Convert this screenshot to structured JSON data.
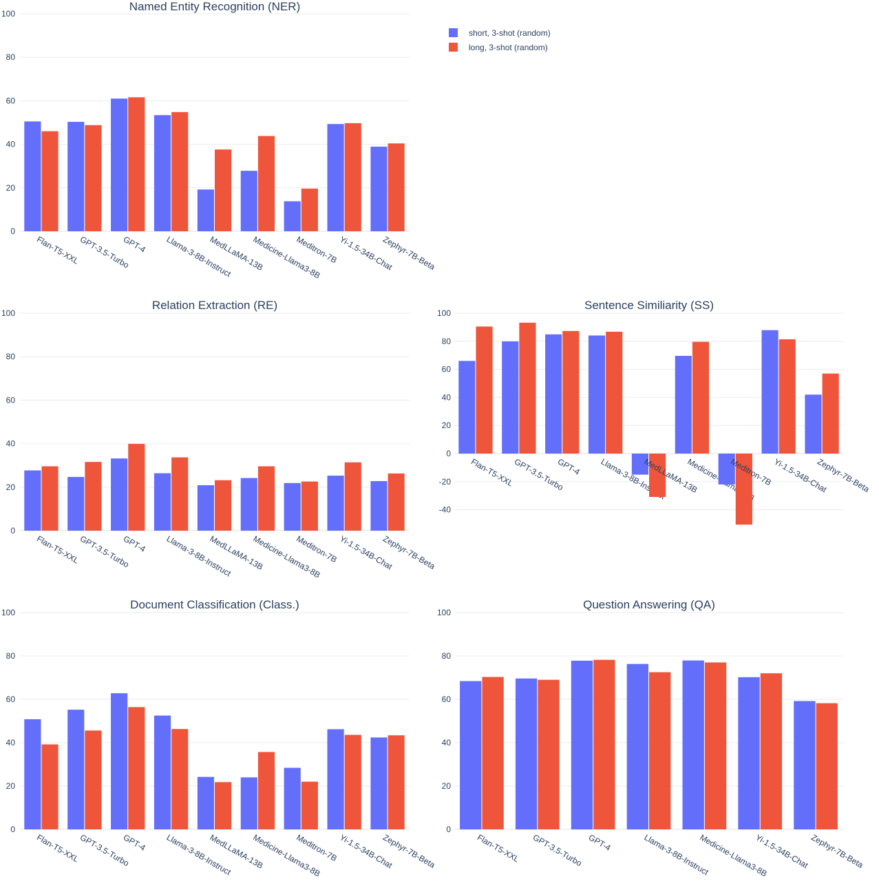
{
  "colors": {
    "short": "#636efa",
    "long": "#ef553b"
  },
  "legend": [
    {
      "name": "short, 3-shot (random)",
      "color": "#636efa"
    },
    {
      "name": "long, 3-shot (random)",
      "color": "#ef553b"
    }
  ],
  "chart_data": [
    {
      "type": "bar",
      "title": "Named Entity Recognition (NER)",
      "ylim": [
        0,
        100
      ],
      "yticks": [
        0,
        20,
        40,
        60,
        80,
        100
      ],
      "categories": [
        "Flan-T5-XXL",
        "GPT-3.5-Turbo",
        "GPT-4",
        "Llama-3-8B-Instruct",
        "MedLLaMA-13B",
        "Medicine-Llama3-8B",
        "Meditron-7B",
        "Yi-1.5-34B-Chat",
        "Zephyr-7B-Beta"
      ],
      "series": [
        {
          "name": "short, 3-shot (random)",
          "values": [
            50.5,
            50.3,
            61.0,
            53.4,
            19.2,
            27.8,
            13.8,
            49.3,
            38.9
          ]
        },
        {
          "name": "long, 3-shot (random)",
          "values": [
            46.0,
            48.8,
            61.6,
            54.8,
            37.6,
            43.8,
            19.6,
            49.7,
            40.4
          ]
        }
      ]
    },
    {
      "type": "bar",
      "title": "Relation Extraction (RE)",
      "ylim": [
        0,
        100
      ],
      "yticks": [
        0,
        20,
        40,
        60,
        80,
        100
      ],
      "categories": [
        "Flan-T5-XXL",
        "GPT-3.5-Turbo",
        "GPT-4",
        "Llama-3-8B-Instruct",
        "MedLLaMA-13B",
        "Medicine-Llama3-8B",
        "Meditron-7B",
        "Yi-1.5-34B-Chat",
        "Zephyr-7B-Beta"
      ],
      "series": [
        {
          "name": "short, 3-shot (random)",
          "values": [
            27.7,
            24.7,
            33.2,
            26.4,
            20.9,
            24.2,
            21.9,
            25.3,
            22.8
          ]
        },
        {
          "name": "long, 3-shot (random)",
          "values": [
            29.6,
            31.6,
            39.9,
            33.7,
            23.2,
            29.6,
            22.6,
            31.4,
            26.3
          ]
        }
      ]
    },
    {
      "type": "bar",
      "title": "Sentence Similiarity (SS)",
      "ylim": [
        -55,
        100
      ],
      "yticks": [
        -40,
        -20,
        0,
        20,
        40,
        60,
        80,
        100
      ],
      "categories": [
        "Flan-T5-XXL",
        "GPT-3.5-Turbo",
        "GPT-4",
        "Llama-3-8B-Instruct",
        "MedLLaMA-13B",
        "Medicine-Llama3-8B",
        "Meditron-7B",
        "Yi-1.5-34B-Chat",
        "Zephyr-7B-Beta"
      ],
      "series": [
        {
          "name": "short, 3-shot (random)",
          "values": [
            66.0,
            79.9,
            84.9,
            84.1,
            -15.0,
            69.6,
            -22.0,
            87.9,
            42.0
          ]
        },
        {
          "name": "long, 3-shot (random)",
          "values": [
            90.5,
            93.2,
            87.3,
            86.8,
            -30.9,
            79.6,
            -50.6,
            81.4,
            57.0
          ]
        }
      ]
    },
    {
      "type": "bar",
      "title": "Document Classification (Class.)",
      "ylim": [
        0,
        100
      ],
      "yticks": [
        0,
        20,
        40,
        60,
        80,
        100
      ],
      "categories": [
        "Flan-T5-XXL",
        "GPT-3.5-Turbo",
        "GPT-4",
        "Llama-3-8B-Instruct",
        "MedLLaMA-13B",
        "Medicine-Llama3-8B",
        "Meditron-7B",
        "Yi-1.5-34B-Chat",
        "Zephyr-7B-Beta"
      ],
      "series": [
        {
          "name": "short, 3-shot (random)",
          "values": [
            50.8,
            55.2,
            62.8,
            52.5,
            24.2,
            24.0,
            28.4,
            46.2,
            42.4
          ]
        },
        {
          "name": "long, 3-shot (random)",
          "values": [
            39.2,
            45.6,
            56.4,
            46.3,
            21.8,
            35.7,
            22.0,
            43.6,
            43.4
          ]
        }
      ]
    },
    {
      "type": "bar",
      "title": "Question Answering (QA)",
      "ylim": [
        0,
        100
      ],
      "yticks": [
        0,
        20,
        40,
        60,
        80,
        100
      ],
      "categories": [
        "Flan-T5-XXL",
        "GPT-3.5-Turbo",
        "GPT-4",
        "Llama-3-8B-Instruct",
        "Medicine-Llama3-8B",
        "Yi-1.5-34B-Chat",
        "Zephyr-7B-Beta"
      ],
      "series": [
        {
          "name": "short, 3-shot (random)",
          "values": [
            68.4,
            69.6,
            77.8,
            76.3,
            77.9,
            70.2,
            59.2
          ]
        },
        {
          "name": "long, 3-shot (random)",
          "values": [
            70.3,
            69.0,
            78.2,
            72.5,
            77.0,
            72.0,
            58.2
          ]
        }
      ]
    }
  ]
}
